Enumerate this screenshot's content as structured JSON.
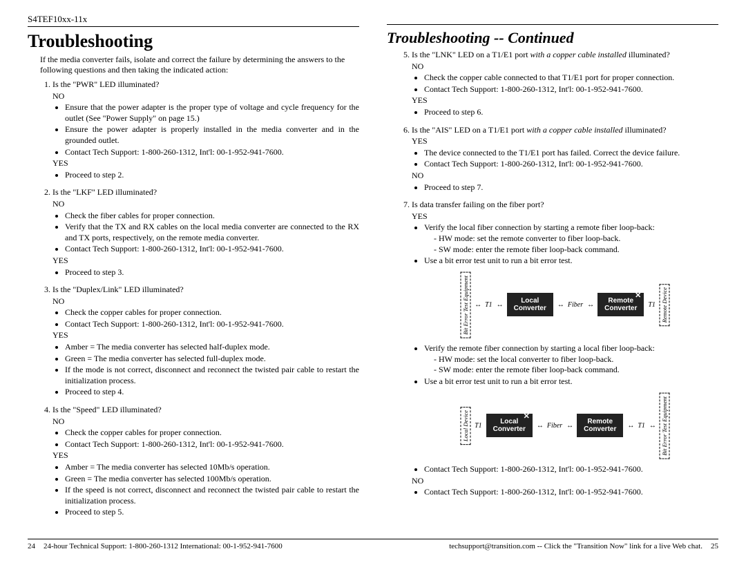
{
  "header": {
    "product": "S4TEF10xx-11x"
  },
  "left": {
    "title": "Troubleshooting",
    "intro": "If the media converter fails, isolate and correct the failure by determining the answers to the following questions and then taking the indicated action:",
    "steps": [
      {
        "q": "Is the \"PWR\" LED illuminated?",
        "no": [
          "Ensure that the power adapter is the proper type of voltage and cycle frequency for the outlet (See \"Power Supply\" on page 15.)",
          "Ensure the power adapter is properly installed in the media converter and in the grounded outlet.",
          "Contact Tech Support: 1-800-260-1312, Int'l: 00-1-952-941-7600."
        ],
        "yes": [
          "Proceed to step 2."
        ]
      },
      {
        "q": "Is the \"LKF\" LED illuminated?",
        "no": [
          "Check the fiber cables for proper connection.",
          "Verify that the TX and RX cables on the local media converter are connected to the RX and TX ports, respectively, on the remote media converter.",
          "Contact Tech Support: 1-800-260-1312, Int'l: 00-1-952-941-7600."
        ],
        "yes": [
          "Proceed to step 3."
        ]
      },
      {
        "q": "Is the \"Duplex/Link\" LED illuminated?",
        "no": [
          "Check the copper cables for proper connection.",
          "Contact Tech Support: 1-800-260-1312, Int'l: 00-1-952-941-7600."
        ],
        "yes": [
          "Amber = The media converter has selected half-duplex mode.",
          "Green = The media converter has selected full-duplex mode.",
          "If the mode is not correct, disconnect and reconnect the twisted pair cable to restart the initialization process.",
          "Proceed to step 4."
        ]
      },
      {
        "q": "Is the \"Speed\" LED illuminated?",
        "no": [
          "Check the copper cables for proper connection.",
          "Contact Tech Support: 1-800-260-1312, Int'l: 00-1-952-941-7600."
        ],
        "yes": [
          "Amber = The media converter has selected 10Mb/s operation.",
          "Green = The media converter has selected 100Mb/s operation.",
          "If the speed is not correct, disconnect and reconnect the twisted pair cable to restart the initialization process.",
          "Proceed to step 5."
        ]
      }
    ]
  },
  "right": {
    "title": "Troubleshooting -- Continued",
    "steps": [
      {
        "num": "5.",
        "q_pre": "Is the \"LNK\" LED on a T1/E1 port ",
        "q_em": "with a copper cable installed",
        "q_post": " illuminated?",
        "no": [
          "Check the copper cable connected to that T1/E1 port for proper connection.",
          "Contact Tech Support: 1-800-260-1312, Int'l: 00-1-952-941-7600."
        ],
        "yes": [
          "Proceed to step 6."
        ]
      },
      {
        "num": "6.",
        "q_pre": "Is the \"AIS\" LED on a T1/E1 port ",
        "q_em": "with a copper cable installed",
        "q_post": " illuminated?",
        "yes": [
          "The device connected to the T1/E1 port has failed. Correct the device failure.",
          "Contact Tech Support: 1-800-260-1312, Int'l: 00-1-952-941-7600."
        ],
        "no": [
          "Proceed to step 7."
        ]
      },
      {
        "num": "7.",
        "q": "Is data transfer failing on the fiber port?",
        "yes_a": "Verify the local fiber connection by starting a remote fiber loop-back:",
        "yes_a_sub": [
          "- HW mode: set the remote converter to fiber loop-back.",
          "- SW mode: enter the remote fiber loop-back command."
        ],
        "yes_b": "Use a bit error test unit to run a bit error test.",
        "yes_c": "Verify the remote fiber connection by starting a local fiber loop-back:",
        "yes_c_sub": [
          "- HW mode: set the local converter to fiber loop-back.",
          "- SW mode: enter the remote fiber loop-back command."
        ],
        "yes_d": "Use a bit error test unit to run a bit error test.",
        "yes_e": "Contact Tech Support: 1-800-260-1312, Int'l: 00-1-952-941-7600.",
        "no_e": "Contact Tech Support: 1-800-260-1312, Int'l: 00-1-952-941-7600."
      }
    ]
  },
  "diagram": {
    "bit_error": "Bit Error Test Equipment",
    "local_device": "Local Device",
    "remote_device": "Remote Device",
    "t1": "T1",
    "fiber": "Fiber",
    "local_conv": "Local Converter",
    "remote_conv": "Remote Converter",
    "colors": {
      "box_bg": "#2b2b2b",
      "box_fg": "#ffffff",
      "dash": "#000000"
    }
  },
  "footer": {
    "left_page": "24",
    "left_text": "24-hour Technical Support: 1-800-260-1312  International: 00-1-952-941-7600",
    "right_text": "techsupport@transition.com -- Click the \"Transition Now\" link for a live Web chat.",
    "right_page": "25"
  },
  "labels": {
    "no": "NO",
    "yes": "YES"
  }
}
